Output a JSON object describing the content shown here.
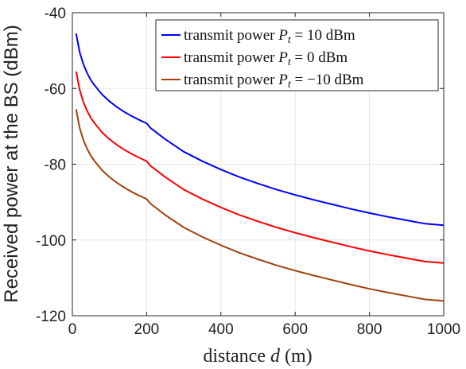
{
  "chart_data": {
    "type": "line",
    "xlabel_prefix": "distance ",
    "xlabel_var": "d",
    "xlabel_suffix": " (m)",
    "ylabel": "Received power at the BS (dBm)",
    "xlim": [
      0,
      1000
    ],
    "ylim": [
      -120,
      -40
    ],
    "xticks": [
      0,
      200,
      400,
      600,
      800,
      1000
    ],
    "yticks": [
      -40,
      -60,
      -80,
      -100,
      -120
    ],
    "grid": true,
    "legend_position": "top-right",
    "x": [
      10,
      20,
      30,
      40,
      50,
      60,
      80,
      100,
      120,
      140,
      160,
      180,
      200,
      210,
      250,
      300,
      350,
      400,
      450,
      500,
      550,
      600,
      650,
      700,
      750,
      800,
      850,
      900,
      950,
      1000
    ],
    "series": [
      {
        "name_prefix": "transmit power ",
        "name_var": "P",
        "name_sub": "t",
        "name_suffix": " = 10 dBm",
        "color": "#0000ff",
        "values": [
          -45.5,
          -50.5,
          -53.7,
          -56.0,
          -57.8,
          -59.2,
          -61.6,
          -63.4,
          -64.9,
          -66.2,
          -67.3,
          -68.3,
          -69.2,
          -70.4,
          -73.4,
          -76.7,
          -79.2,
          -81.4,
          -83.4,
          -85.1,
          -86.7,
          -88.1,
          -89.4,
          -90.6,
          -91.8,
          -92.9,
          -93.9,
          -94.8,
          -95.7,
          -96.1
        ]
      },
      {
        "name_prefix": "transmit power ",
        "name_var": "P",
        "name_sub": "t",
        "name_suffix": " = 0 dBm",
        "color": "#ff0000",
        "values": [
          -55.5,
          -60.5,
          -63.7,
          -66.0,
          -67.8,
          -69.2,
          -71.6,
          -73.4,
          -74.9,
          -76.2,
          -77.3,
          -78.3,
          -79.2,
          -80.4,
          -83.4,
          -86.7,
          -89.2,
          -91.4,
          -93.4,
          -95.1,
          -96.7,
          -98.1,
          -99.4,
          -100.6,
          -101.8,
          -102.9,
          -103.9,
          -104.8,
          -105.7,
          -106.1
        ]
      },
      {
        "name_prefix": "transmit power ",
        "name_var": "P",
        "name_sub": "t",
        "name_suffix": " = −10 dBm",
        "color": "#a0410d",
        "values": [
          -65.5,
          -70.5,
          -73.7,
          -76.0,
          -77.8,
          -79.2,
          -81.6,
          -83.4,
          -84.9,
          -86.2,
          -87.3,
          -88.3,
          -89.2,
          -90.4,
          -93.4,
          -96.7,
          -99.2,
          -101.4,
          -103.4,
          -105.1,
          -106.7,
          -108.1,
          -109.4,
          -110.6,
          -111.8,
          -112.9,
          -113.9,
          -114.8,
          -115.7,
          -116.1
        ]
      }
    ]
  }
}
